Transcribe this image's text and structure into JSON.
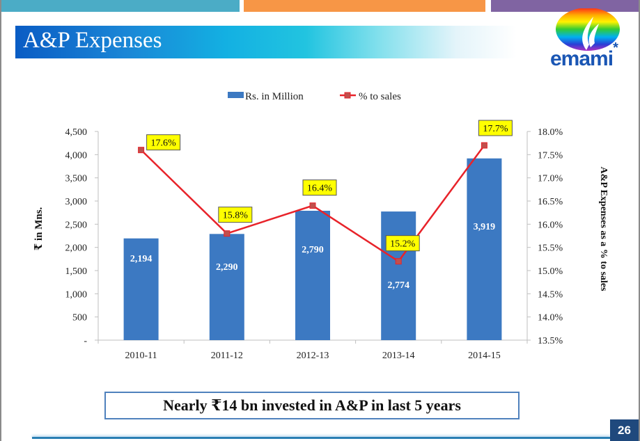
{
  "slide": {
    "title": "A&P Expenses",
    "logo_text": "emami",
    "logo_mark": "*",
    "callout": "Nearly ₹14 bn invested in A&P in last 5 years",
    "page_number": "26",
    "colors": {
      "bar": "#3c79c2",
      "line": "#e8232a",
      "marker": "#c0504d",
      "label_bg": "#ffff00",
      "top_bar_1": "#4bacc6",
      "top_bar_2": "#f79646",
      "top_bar_3": "#8064a2",
      "footer_box": "#1f497d"
    }
  },
  "chart_data": {
    "type": "bar+line",
    "title": "",
    "categories": [
      "2010-11",
      "2011-12",
      "2012-13",
      "2013-14",
      "2014-15"
    ],
    "series": [
      {
        "name": "Rs. in Million",
        "type": "bar",
        "axis": "left",
        "values": [
          2194,
          2290,
          2790,
          2774,
          3919
        ],
        "labels": [
          "2,194",
          "2,290",
          "2,790",
          "2,774",
          "3,919"
        ]
      },
      {
        "name": "% to sales",
        "type": "line",
        "axis": "right",
        "values": [
          17.6,
          15.8,
          16.4,
          15.2,
          17.7
        ],
        "labels": [
          "17.6%",
          "15.8%",
          "16.4%",
          "15.2%",
          "17.7%"
        ]
      }
    ],
    "ylabel": "₹ in Mns.",
    "y2label": "A&P Expenses as a % to sales",
    "xlabel": "",
    "ylim": [
      0,
      4500
    ],
    "y2lim": [
      13.5,
      18.0
    ],
    "yticks": [
      "-",
      "500",
      "1,000",
      "1,500",
      "2,000",
      "2,500",
      "3,000",
      "3,500",
      "4,000",
      "4,500"
    ],
    "y2ticks": [
      "13.5%",
      "14.0%",
      "14.5%",
      "15.0%",
      "15.5%",
      "16.0%",
      "16.5%",
      "17.0%",
      "17.5%",
      "18.0%"
    ],
    "legend": [
      "Rs. in Million",
      "% to sales"
    ],
    "legend_position": "top-center",
    "grid": false
  }
}
